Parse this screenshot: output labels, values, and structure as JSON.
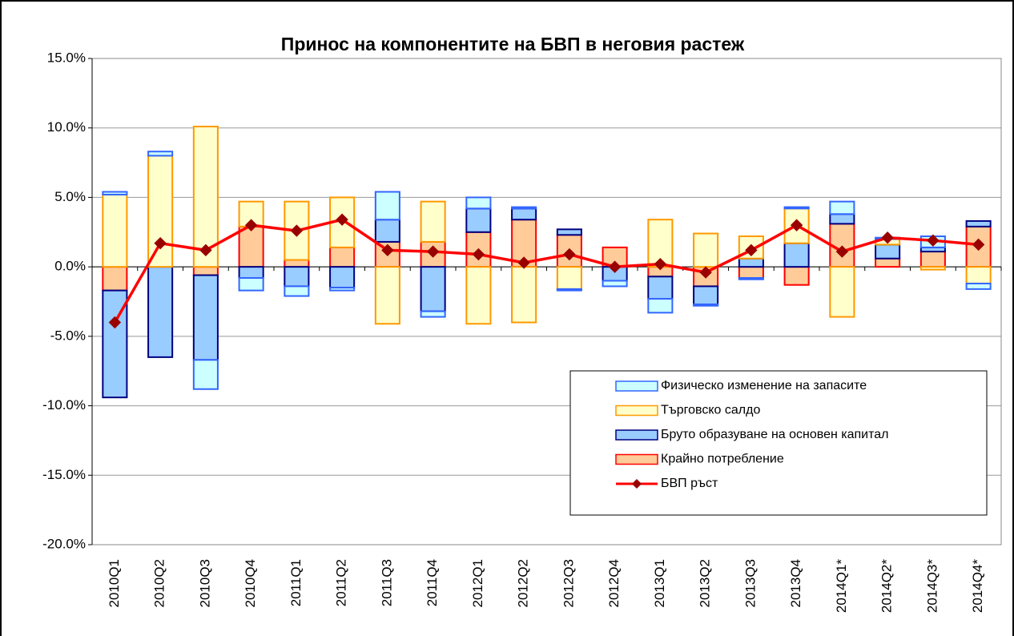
{
  "chart_data": {
    "type": "bar",
    "stacked": true,
    "title": "Принос на компонентите на БВП в неговия растеж",
    "categories": [
      "2010Q1",
      "2010Q2",
      "2010Q3",
      "2010Q4",
      "2011Q1",
      "2011Q2",
      "2011Q3",
      "2011Q4",
      "2012Q1",
      "2012Q2",
      "2012Q3",
      "2012Q4",
      "2013Q1",
      "2013Q2",
      "2013Q3",
      "2013Q4",
      "2014Q1*",
      "2014Q2*",
      "2014Q3*",
      "2014Q4*"
    ],
    "series": [
      {
        "name": "Крайно потребление",
        "type": "bar",
        "color": "#ffcc99",
        "stroke": "#ff0000",
        "values": [
          -1.7,
          0,
          -0.6,
          2.9,
          0.5,
          1.4,
          1.8,
          1.8,
          2.5,
          3.4,
          2.3,
          1.4,
          -0.7,
          -1.4,
          -0.8,
          -1.3,
          3.1,
          0.6,
          1.1,
          2.9
        ]
      },
      {
        "name": "Бруто образуване на основен капитал",
        "type": "bar",
        "color": "#99ccff",
        "stroke": "#000080",
        "values": [
          -7.7,
          -6.5,
          -6.1,
          -0.8,
          -1.4,
          -1.5,
          1.6,
          -3.2,
          1.7,
          0.8,
          0.4,
          -1.0,
          -1.6,
          -1.3,
          0.6,
          1.7,
          0.7,
          1.0,
          0.3,
          0.4
        ]
      },
      {
        "name": "Търговско салдо",
        "type": "bar",
        "color": "#ffffcc",
        "stroke": "#ff9900",
        "values": [
          5.2,
          8.0,
          10.1,
          1.8,
          4.2,
          3.6,
          -4.1,
          2.9,
          -4.1,
          -4.0,
          -1.6,
          0,
          3.4,
          2.4,
          1.6,
          2.5,
          -3.6,
          0.4,
          -0.2,
          -1.2
        ]
      },
      {
        "name": "Физическо изменение на запасите",
        "type": "bar",
        "color": "#ccffff",
        "stroke": "#3366ff",
        "values": [
          0.2,
          0.3,
          -2.1,
          -0.9,
          -0.7,
          -0.2,
          2.0,
          -0.4,
          0.8,
          0.1,
          -0.1,
          -0.4,
          -1.0,
          -0.1,
          -0.1,
          0.1,
          0.9,
          0.1,
          0.8,
          -0.4
        ]
      },
      {
        "name": "БВП ръст",
        "type": "line",
        "color": "#ff0000",
        "marker_color": "#990000",
        "values": [
          -4.0,
          1.7,
          1.2,
          3.0,
          2.6,
          3.4,
          1.2,
          1.1,
          0.9,
          0.3,
          0.9,
          0.0,
          0.2,
          -0.4,
          1.2,
          3.0,
          1.1,
          2.1,
          1.9,
          1.6
        ]
      }
    ],
    "ylim": [
      -20,
      15
    ],
    "yticks": [
      {
        "value": -20,
        "label": "-20.0%"
      },
      {
        "value": -15,
        "label": "-15.0%"
      },
      {
        "value": -10,
        "label": "-10.0%"
      },
      {
        "value": -5,
        "label": "-5.0%"
      },
      {
        "value": 0,
        "label": "0.0%"
      },
      {
        "value": 5,
        "label": "5.0%"
      },
      {
        "value": 10,
        "label": "10.0%"
      },
      {
        "value": 15,
        "label": "15.0%"
      }
    ],
    "grid": true
  }
}
